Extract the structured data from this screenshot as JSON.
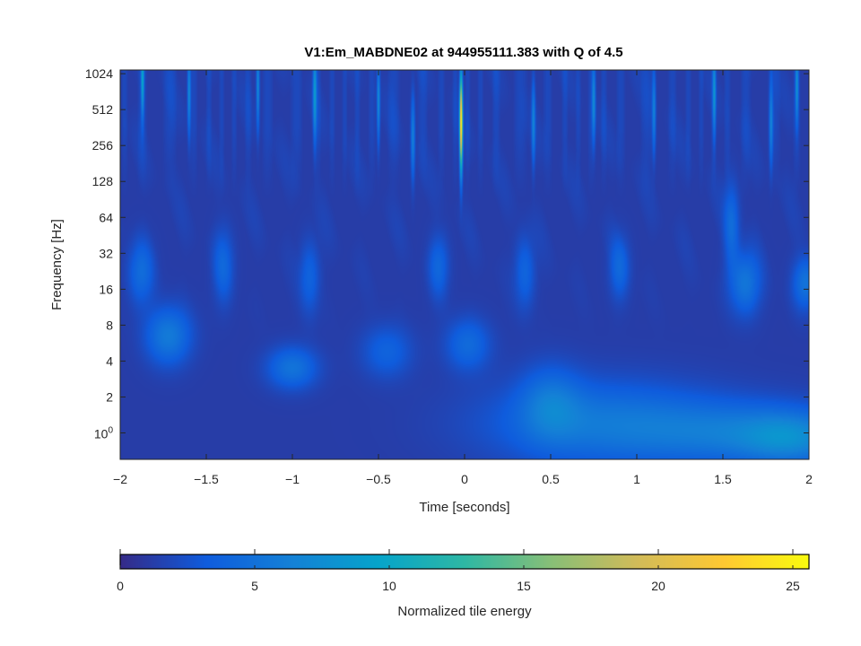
{
  "chart_data": {
    "type": "heatmap",
    "title": "V1:Em_MABDNE02 at 944955111.383 with Q of 4.5",
    "xlabel": "Time [seconds]",
    "ylabel": "Frequency [Hz]",
    "xlim": [
      -2,
      2
    ],
    "ylim": [
      0.6,
      1100
    ],
    "yscale": "log",
    "x_ticks": [
      {
        "value": -2,
        "label": "−2"
      },
      {
        "value": -1.5,
        "label": "−1.5"
      },
      {
        "value": -1,
        "label": "−1"
      },
      {
        "value": -0.5,
        "label": "−0.5"
      },
      {
        "value": 0,
        "label": "0"
      },
      {
        "value": 0.5,
        "label": "0.5"
      },
      {
        "value": 1,
        "label": "1"
      },
      {
        "value": 1.5,
        "label": "1.5"
      },
      {
        "value": 2,
        "label": "2"
      }
    ],
    "y_ticks": [
      {
        "value": 1,
        "label": "10",
        "exponent": "0"
      },
      {
        "value": 2,
        "label": "2"
      },
      {
        "value": 4,
        "label": "4"
      },
      {
        "value": 8,
        "label": "8"
      },
      {
        "value": 16,
        "label": "16"
      },
      {
        "value": 32,
        "label": "32"
      },
      {
        "value": 64,
        "label": "64"
      },
      {
        "value": 128,
        "label": "128"
      },
      {
        "value": 256,
        "label": "256"
      },
      {
        "value": 512,
        "label": "512"
      },
      {
        "value": 1024,
        "label": "1024"
      }
    ],
    "colormap": "parula",
    "colormap_stops": [
      "#352a87",
      "#0f5cdd",
      "#1481d6",
      "#06a4ca",
      "#2eb7a4",
      "#87bf77",
      "#d1bb59",
      "#fec832",
      "#f9fb0e"
    ],
    "colorbar": {
      "label": "Normalized tile energy",
      "range": [
        0,
        25.6
      ],
      "ticks": [
        {
          "value": 0,
          "label": "0"
        },
        {
          "value": 5,
          "label": "5"
        },
        {
          "value": 10,
          "label": "10"
        },
        {
          "value": 15,
          "label": "15"
        },
        {
          "value": 20,
          "label": "20"
        },
        {
          "value": 25,
          "label": "25"
        }
      ]
    },
    "background_energy": 1.2,
    "features": [
      {
        "t": -0.02,
        "f": 400,
        "dt": 0.006,
        "df_oct": 0.9,
        "energy": 24
      },
      {
        "t": 0.8,
        "f": 1.2,
        "dt": 0.45,
        "df_oct": 0.8,
        "energy": 4.2
      },
      {
        "t": 1.6,
        "f": 1.0,
        "dt": 0.4,
        "df_oct": 0.6,
        "energy": 3.8
      },
      {
        "t": 0.5,
        "f": 1.8,
        "dt": 0.12,
        "df_oct": 0.7,
        "energy": 3.2
      },
      {
        "t": 1.9,
        "f": 0.9,
        "dt": 0.2,
        "df_oct": 0.5,
        "energy": 4.0
      },
      {
        "t": -1.72,
        "f": 6.5,
        "dt": 0.09,
        "df_oct": 0.55,
        "energy": 4.6
      },
      {
        "t": -1.0,
        "f": 3.5,
        "dt": 0.1,
        "df_oct": 0.4,
        "energy": 4.0
      },
      {
        "t": 0.02,
        "f": 5.5,
        "dt": 0.09,
        "df_oct": 0.5,
        "energy": 3.2
      },
      {
        "t": -0.45,
        "f": 4.8,
        "dt": 0.1,
        "df_oct": 0.5,
        "energy": 2.6
      },
      {
        "t": -1.88,
        "f": 22,
        "dt": 0.05,
        "df_oct": 0.6,
        "energy": 3.3
      },
      {
        "t": -1.4,
        "f": 25,
        "dt": 0.04,
        "df_oct": 0.7,
        "energy": 2.8
      },
      {
        "t": -0.9,
        "f": 20,
        "dt": 0.04,
        "df_oct": 0.7,
        "energy": 2.6
      },
      {
        "t": -0.15,
        "f": 25,
        "dt": 0.04,
        "df_oct": 0.6,
        "energy": 2.8
      },
      {
        "t": 0.35,
        "f": 22,
        "dt": 0.04,
        "df_oct": 0.7,
        "energy": 2.7
      },
      {
        "t": 0.9,
        "f": 24,
        "dt": 0.04,
        "df_oct": 0.6,
        "energy": 2.9
      },
      {
        "t": 1.55,
        "f": 55,
        "dt": 0.03,
        "df_oct": 0.8,
        "energy": 3.3
      },
      {
        "t": 1.63,
        "f": 18,
        "dt": 0.06,
        "df_oct": 0.6,
        "energy": 4.2
      },
      {
        "t": 1.98,
        "f": 18,
        "dt": 0.05,
        "df_oct": 0.5,
        "energy": 4.0
      },
      {
        "t": -1.87,
        "f": 900,
        "dt": 0.006,
        "df_oct": 0.7,
        "energy": 8
      },
      {
        "t": -1.6,
        "f": 700,
        "dt": 0.006,
        "df_oct": 0.8,
        "energy": 6
      },
      {
        "t": -1.2,
        "f": 800,
        "dt": 0.006,
        "df_oct": 0.8,
        "energy": 6
      },
      {
        "t": -0.87,
        "f": 700,
        "dt": 0.007,
        "df_oct": 0.9,
        "energy": 7
      },
      {
        "t": -0.5,
        "f": 600,
        "dt": 0.006,
        "df_oct": 0.8,
        "energy": 6
      },
      {
        "t": -0.3,
        "f": 300,
        "dt": 0.008,
        "df_oct": 0.8,
        "energy": 5
      },
      {
        "t": 0.4,
        "f": 400,
        "dt": 0.007,
        "df_oct": 0.8,
        "energy": 5
      },
      {
        "t": 0.75,
        "f": 600,
        "dt": 0.007,
        "df_oct": 0.8,
        "energy": 6
      },
      {
        "t": 1.1,
        "f": 500,
        "dt": 0.007,
        "df_oct": 0.8,
        "energy": 5
      },
      {
        "t": 1.45,
        "f": 700,
        "dt": 0.006,
        "df_oct": 0.8,
        "energy": 6
      },
      {
        "t": 1.78,
        "f": 400,
        "dt": 0.007,
        "df_oct": 0.8,
        "energy": 5
      },
      {
        "t": 1.93,
        "f": 800,
        "dt": 0.006,
        "df_oct": 0.7,
        "energy": 6
      }
    ]
  }
}
